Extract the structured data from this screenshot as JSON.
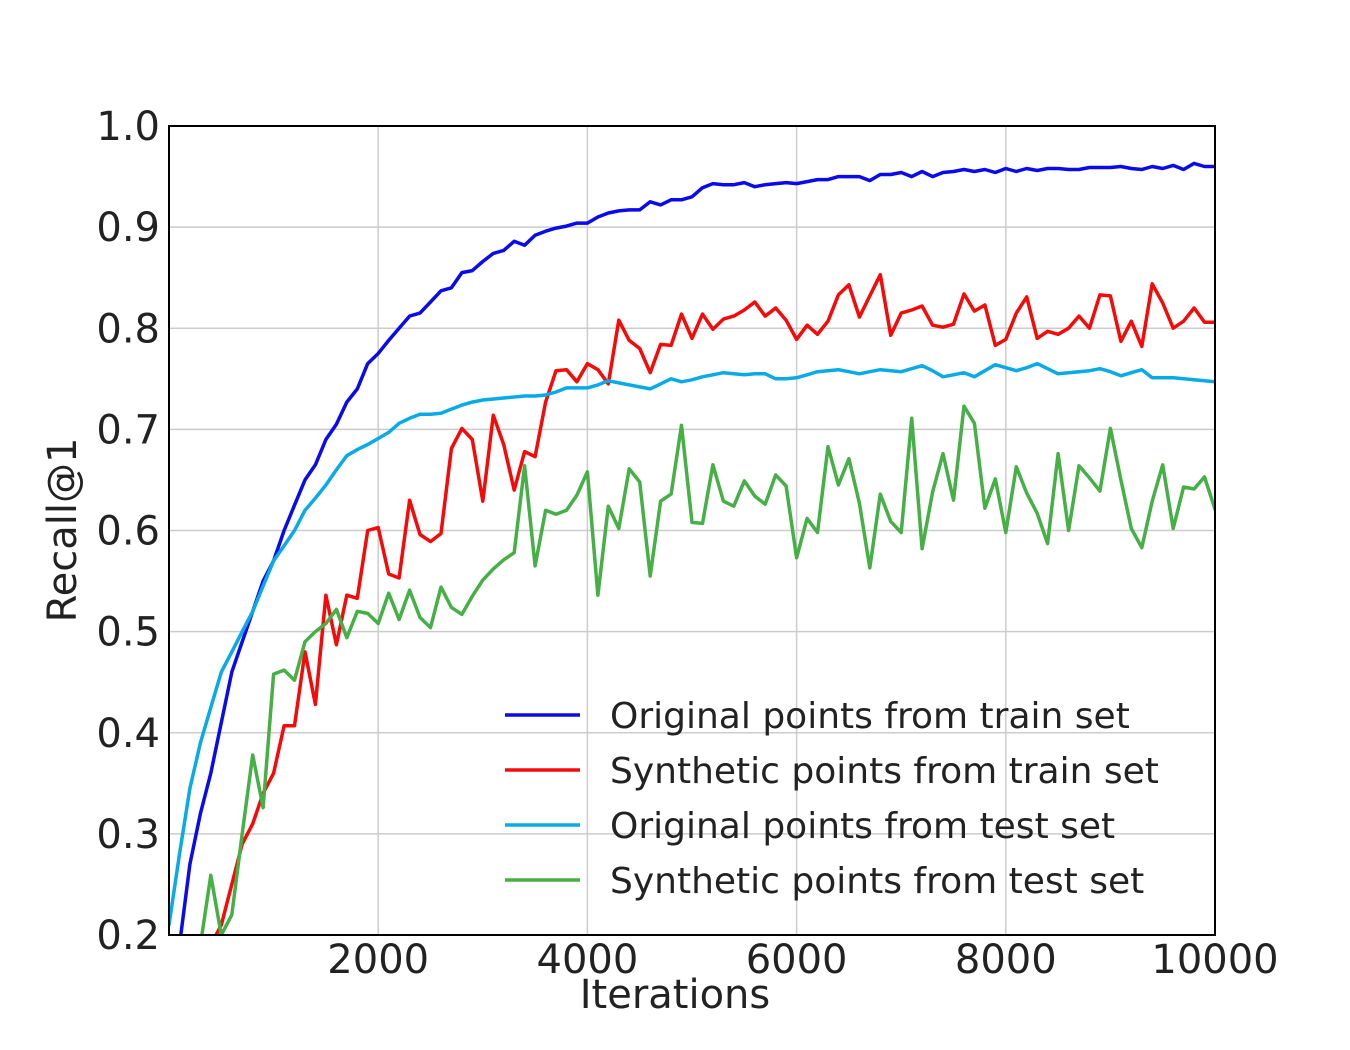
{
  "chart_data": {
    "type": "line",
    "title": "",
    "xlabel": "Iterations",
    "ylabel": "Recall@1",
    "xlim": [
      0,
      10000
    ],
    "ylim": [
      0.2,
      1.0
    ],
    "xticks": [
      2000,
      4000,
      6000,
      8000,
      10000
    ],
    "xtick_labels": [
      "2000",
      "4000",
      "6000",
      "8000",
      "10000"
    ],
    "yticks": [
      0.2,
      0.3,
      0.4,
      0.5,
      0.6,
      0.7,
      0.8,
      0.9,
      1.0
    ],
    "ytick_labels": [
      "0.2",
      "0.3",
      "0.4",
      "0.5",
      "0.6",
      "0.7",
      "0.8",
      "0.9",
      "1.0"
    ],
    "grid": true,
    "legend_position": "lower-right",
    "series": [
      {
        "name": "Original points from train set",
        "color": "#0a0aeb",
        "x": [
          0,
          100,
          200,
          300,
          400,
          500,
          600,
          700,
          800,
          900,
          1000,
          1100,
          1200,
          1300,
          1400,
          1500,
          1600,
          1700,
          1800,
          1900,
          2000,
          2100,
          2200,
          2300,
          2400,
          2500,
          2600,
          2700,
          2800,
          2900,
          3000,
          3100,
          3200,
          3300,
          3400,
          3500,
          3600,
          3700,
          3800,
          3900,
          4000,
          4100,
          4200,
          4300,
          4400,
          4500,
          4600,
          4700,
          4800,
          4900,
          5000,
          5100,
          5200,
          5300,
          5400,
          5500,
          5600,
          5700,
          5800,
          5900,
          6000,
          6100,
          6200,
          6300,
          6400,
          6500,
          6600,
          6700,
          6800,
          6900,
          7000,
          7100,
          7200,
          7300,
          7400,
          7500,
          7600,
          7700,
          7800,
          7900,
          8000,
          8100,
          8200,
          8300,
          8400,
          8500,
          8600,
          8700,
          8800,
          8900,
          9000,
          9100,
          9200,
          9300,
          9400,
          9500,
          9600,
          9700,
          9800,
          9900,
          10000
        ],
        "y": [
          0.12,
          0.19,
          0.27,
          0.32,
          0.36,
          0.41,
          0.46,
          0.49,
          0.52,
          0.55,
          0.57,
          0.6,
          0.625,
          0.65,
          0.665,
          0.69,
          0.705,
          0.727,
          0.74,
          0.765,
          0.775,
          0.788,
          0.8,
          0.812,
          0.815,
          0.826,
          0.837,
          0.84,
          0.855,
          0.857,
          0.866,
          0.874,
          0.877,
          0.886,
          0.882,
          0.892,
          0.896,
          0.899,
          0.901,
          0.904,
          0.904,
          0.91,
          0.914,
          0.916,
          0.917,
          0.917,
          0.925,
          0.922,
          0.927,
          0.927,
          0.93,
          0.939,
          0.943,
          0.942,
          0.942,
          0.944,
          0.94,
          0.942,
          0.943,
          0.944,
          0.943,
          0.945,
          0.947,
          0.947,
          0.95,
          0.95,
          0.95,
          0.946,
          0.952,
          0.952,
          0.954,
          0.95,
          0.955,
          0.95,
          0.954,
          0.955,
          0.957,
          0.955,
          0.957,
          0.954,
          0.958,
          0.955,
          0.958,
          0.956,
          0.958,
          0.958,
          0.957,
          0.957,
          0.959,
          0.959,
          0.959,
          0.96,
          0.958,
          0.957,
          0.96,
          0.958,
          0.961,
          0.957,
          0.963,
          0.96,
          0.96
        ]
      },
      {
        "name": "Synthetic points from train set",
        "color": "#f50a0a",
        "x": [
          400,
          500,
          600,
          700,
          800,
          900,
          1000,
          1100,
          1200,
          1300,
          1400,
          1500,
          1600,
          1700,
          1800,
          1900,
          2000,
          2100,
          2200,
          2300,
          2400,
          2500,
          2600,
          2700,
          2800,
          2900,
          3000,
          3100,
          3200,
          3300,
          3400,
          3500,
          3600,
          3700,
          3800,
          3900,
          4000,
          4100,
          4200,
          4300,
          4400,
          4500,
          4600,
          4700,
          4800,
          4900,
          5000,
          5100,
          5200,
          5300,
          5400,
          5500,
          5600,
          5700,
          5800,
          5900,
          6000,
          6100,
          6200,
          6300,
          6400,
          6500,
          6600,
          6700,
          6800,
          6900,
          7000,
          7100,
          7200,
          7300,
          7400,
          7500,
          7600,
          7700,
          7800,
          7900,
          8000,
          8100,
          8200,
          8300,
          8400,
          8500,
          8600,
          8700,
          8800,
          8900,
          9000,
          9100,
          9200,
          9300,
          9400,
          9500,
          9600,
          9700,
          9800,
          9900,
          10000
        ],
        "y": [
          0.19,
          0.21,
          0.25,
          0.29,
          0.31,
          0.34,
          0.36,
          0.407,
          0.407,
          0.48,
          0.428,
          0.536,
          0.487,
          0.536,
          0.533,
          0.6,
          0.603,
          0.557,
          0.553,
          0.63,
          0.596,
          0.589,
          0.597,
          0.681,
          0.701,
          0.69,
          0.629,
          0.714,
          0.685,
          0.64,
          0.678,
          0.673,
          0.727,
          0.758,
          0.759,
          0.747,
          0.765,
          0.759,
          0.745,
          0.808,
          0.788,
          0.78,
          0.756,
          0.784,
          0.783,
          0.814,
          0.79,
          0.814,
          0.799,
          0.809,
          0.812,
          0.818,
          0.826,
          0.812,
          0.82,
          0.808,
          0.789,
          0.803,
          0.794,
          0.807,
          0.833,
          0.843,
          0.811,
          0.832,
          0.853,
          0.793,
          0.815,
          0.818,
          0.822,
          0.803,
          0.801,
          0.804,
          0.834,
          0.817,
          0.823,
          0.783,
          0.789,
          0.815,
          0.831,
          0.79,
          0.797,
          0.794,
          0.8,
          0.812,
          0.8,
          0.833,
          0.832,
          0.787,
          0.807,
          0.782,
          0.844,
          0.825,
          0.8,
          0.807,
          0.82,
          0.806,
          0.806
        ]
      },
      {
        "name": "Original points from test set",
        "color": "#0aaae6",
        "x": [
          0,
          100,
          200,
          300,
          400,
          500,
          600,
          700,
          800,
          900,
          1000,
          1100,
          1200,
          1300,
          1400,
          1500,
          1600,
          1700,
          1800,
          1900,
          2000,
          2100,
          2200,
          2300,
          2400,
          2500,
          2600,
          2700,
          2800,
          2900,
          3000,
          3100,
          3200,
          3300,
          3400,
          3500,
          3600,
          3700,
          3800,
          3900,
          4000,
          4100,
          4200,
          4300,
          4400,
          4500,
          4600,
          4700,
          4800,
          4900,
          5000,
          5100,
          5200,
          5300,
          5400,
          5500,
          5600,
          5700,
          5800,
          5900,
          6000,
          6100,
          6200,
          6300,
          6400,
          6500,
          6600,
          6700,
          6800,
          6900,
          7000,
          7100,
          7200,
          7300,
          7400,
          7500,
          7600,
          7700,
          7800,
          7900,
          8000,
          8100,
          8200,
          8300,
          8400,
          8500,
          8600,
          8700,
          8800,
          8900,
          9000,
          9100,
          9200,
          9300,
          9400,
          9500,
          9600,
          9700,
          9800,
          9900,
          10000
        ],
        "y": [
          0.21,
          0.28,
          0.345,
          0.39,
          0.425,
          0.46,
          0.48,
          0.5,
          0.52,
          0.545,
          0.57,
          0.585,
          0.6,
          0.62,
          0.632,
          0.645,
          0.66,
          0.674,
          0.68,
          0.685,
          0.691,
          0.697,
          0.706,
          0.711,
          0.715,
          0.715,
          0.716,
          0.72,
          0.724,
          0.727,
          0.729,
          0.73,
          0.731,
          0.732,
          0.733,
          0.733,
          0.734,
          0.737,
          0.741,
          0.741,
          0.741,
          0.744,
          0.748,
          0.746,
          0.744,
          0.742,
          0.74,
          0.745,
          0.75,
          0.747,
          0.749,
          0.752,
          0.754,
          0.756,
          0.755,
          0.754,
          0.755,
          0.755,
          0.75,
          0.75,
          0.751,
          0.754,
          0.757,
          0.758,
          0.759,
          0.757,
          0.755,
          0.757,
          0.759,
          0.758,
          0.757,
          0.76,
          0.763,
          0.758,
          0.752,
          0.754,
          0.756,
          0.752,
          0.758,
          0.764,
          0.761,
          0.758,
          0.761,
          0.765,
          0.76,
          0.755,
          0.756,
          0.757,
          0.758,
          0.76,
          0.757,
          0.753,
          0.756,
          0.759,
          0.751,
          0.751,
          0.751,
          0.75,
          0.749,
          0.748,
          0.747
        ]
      },
      {
        "name": "Synthetic points from test set",
        "color": "#46af46",
        "x": [
          300,
          400,
          500,
          600,
          700,
          800,
          900,
          1000,
          1100,
          1200,
          1300,
          1400,
          1500,
          1600,
          1700,
          1800,
          1900,
          2000,
          2100,
          2200,
          2300,
          2400,
          2500,
          2600,
          2700,
          2800,
          2900,
          3000,
          3100,
          3200,
          3300,
          3400,
          3500,
          3600,
          3700,
          3800,
          3900,
          4000,
          4100,
          4200,
          4300,
          4400,
          4500,
          4600,
          4700,
          4800,
          4900,
          5000,
          5100,
          5200,
          5300,
          5400,
          5500,
          5600,
          5700,
          5800,
          5900,
          6000,
          6100,
          6200,
          6300,
          6400,
          6500,
          6600,
          6700,
          6800,
          6900,
          7000,
          7100,
          7200,
          7300,
          7400,
          7500,
          7600,
          7700,
          7800,
          7900,
          8000,
          8100,
          8200,
          8300,
          8400,
          8500,
          8600,
          8700,
          8800,
          8900,
          9000,
          9100,
          9200,
          9300,
          9400,
          9500,
          9600,
          9700,
          9800,
          9900,
          10000
        ],
        "y": [
          0.19,
          0.259,
          0.2,
          0.22,
          0.3,
          0.378,
          0.326,
          0.458,
          0.462,
          0.452,
          0.49,
          0.5,
          0.508,
          0.522,
          0.494,
          0.52,
          0.518,
          0.508,
          0.538,
          0.512,
          0.541,
          0.514,
          0.504,
          0.544,
          0.524,
          0.517,
          0.535,
          0.551,
          0.562,
          0.571,
          0.578,
          0.664,
          0.565,
          0.62,
          0.616,
          0.62,
          0.635,
          0.658,
          0.536,
          0.624,
          0.602,
          0.661,
          0.648,
          0.555,
          0.629,
          0.636,
          0.704,
          0.608,
          0.607,
          0.665,
          0.629,
          0.624,
          0.649,
          0.634,
          0.626,
          0.655,
          0.644,
          0.573,
          0.612,
          0.598,
          0.683,
          0.645,
          0.671,
          0.627,
          0.563,
          0.636,
          0.609,
          0.598,
          0.711,
          0.582,
          0.638,
          0.676,
          0.63,
          0.723,
          0.706,
          0.622,
          0.651,
          0.598,
          0.663,
          0.637,
          0.617,
          0.587,
          0.676,
          0.6,
          0.664,
          0.652,
          0.639,
          0.701,
          0.65,
          0.602,
          0.583,
          0.629,
          0.665,
          0.602,
          0.643,
          0.641,
          0.653,
          0.621
        ]
      }
    ]
  }
}
